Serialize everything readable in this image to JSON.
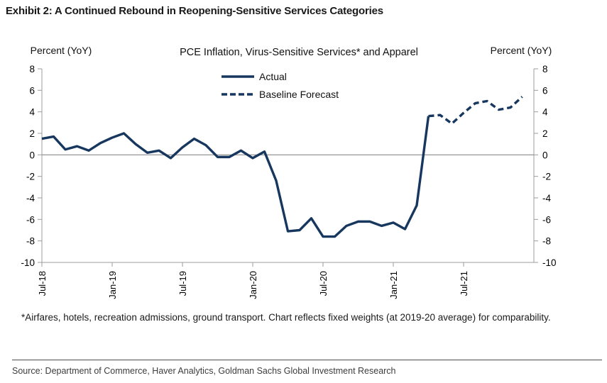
{
  "exhibit_title": "Exhibit 2: A Continued Rebound in Reopening-Sensitive Services Categories",
  "footnote": "*Airfares, hotels, recreation admissions, ground transport. Chart reflects fixed weights (at 2019-20 average) for comparability.",
  "source": "Source: Department of Commerce, Haver Analytics, Goldman Sachs Global Investment Research",
  "chart_data": {
    "type": "line",
    "title": "PCE Inflation, Virus-Sensitive Services* and Apparel",
    "left_axis_label": "Percent (YoY)",
    "right_axis_label": "Percent (YoY)",
    "ylim": [
      -10,
      8
    ],
    "y_ticks": [
      8,
      6,
      4,
      2,
      0,
      -2,
      -4,
      -6,
      -8,
      -10
    ],
    "grid": "zero-line-only",
    "zero_line": true,
    "legend_position": "top-center",
    "color": "#17375E",
    "x_months": [
      "Jul-18",
      "Aug-18",
      "Sep-18",
      "Oct-18",
      "Nov-18",
      "Dec-18",
      "Jan-19",
      "Feb-19",
      "Mar-19",
      "Apr-19",
      "May-19",
      "Jun-19",
      "Jul-19",
      "Aug-19",
      "Sep-19",
      "Oct-19",
      "Nov-19",
      "Dec-19",
      "Jan-20",
      "Feb-20",
      "Mar-20",
      "Apr-20",
      "May-20",
      "Jun-20",
      "Jul-20",
      "Aug-20",
      "Sep-20",
      "Oct-20",
      "Nov-20",
      "Dec-20",
      "Jan-21",
      "Feb-21",
      "Mar-21",
      "Apr-21",
      "May-21",
      "Jun-21",
      "Jul-21",
      "Aug-21",
      "Sep-21",
      "Oct-21",
      "Nov-21",
      "Dec-21"
    ],
    "x_tick_labels": [
      "Jul-18",
      "Jan-19",
      "Jul-19",
      "Jan-20",
      "Jul-20",
      "Jan-21",
      "Jul-21"
    ],
    "x_tick_indices": [
      0,
      6,
      12,
      18,
      24,
      30,
      36
    ],
    "series": [
      {
        "name": "Actual",
        "style": "solid",
        "start_index": 0,
        "values": [
          1.5,
          1.7,
          0.5,
          0.8,
          0.4,
          1.1,
          1.6,
          2.0,
          1.0,
          0.2,
          0.4,
          -0.3,
          0.7,
          1.5,
          0.9,
          -0.2,
          -0.2,
          0.4,
          -0.3,
          0.3,
          -2.4,
          -7.1,
          -7.0,
          -5.9,
          -7.6,
          -7.6,
          -6.6,
          -6.2,
          -6.2,
          -6.6,
          -6.3,
          -6.9,
          -4.7,
          3.6
        ]
      },
      {
        "name": "Baseline Forecast",
        "style": "dashed",
        "start_index": 33,
        "values": [
          3.6,
          3.7,
          2.9,
          3.9,
          4.8,
          5.0,
          4.2,
          4.4,
          5.4
        ]
      }
    ]
  }
}
